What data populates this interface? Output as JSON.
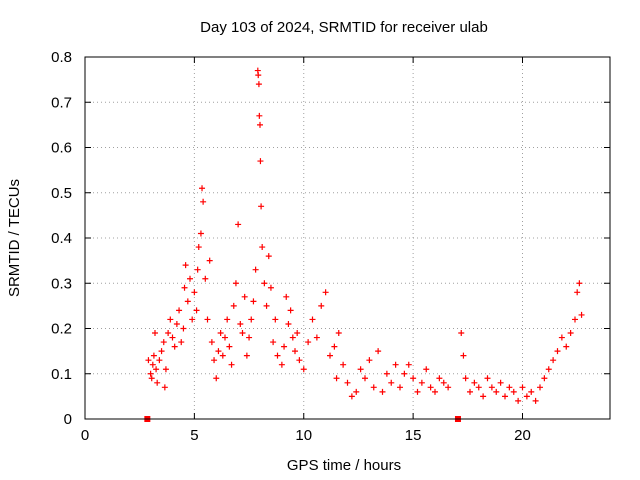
{
  "chart_data": {
    "type": "scatter",
    "title": "Day 103 of 2024, SRMTID for receiver ulab",
    "xlabel": "GPS time / hours",
    "ylabel": "SRMTID / TECUs",
    "xlim": [
      0,
      24
    ],
    "ylim": [
      0,
      0.8
    ],
    "xticks": [
      0,
      5,
      10,
      15,
      20
    ],
    "yticks": [
      0,
      0.1,
      0.2,
      0.3,
      0.4,
      0.5,
      0.6,
      0.7,
      0.8
    ],
    "xtick_labels": [
      "0",
      "5",
      "10",
      "15",
      "20"
    ],
    "ytick_labels": [
      "0",
      "0.1",
      "0.2",
      "0.3",
      "0.4",
      "0.5",
      "0.6",
      "0.7",
      "0.8"
    ],
    "grid": true,
    "series_color": "#ff0000",
    "marker": "plus",
    "markers_at_zero": [
      2.85,
      17.05
    ],
    "series": [
      {
        "name": "SRMTID",
        "points": [
          [
            2.9,
            0.13
          ],
          [
            3.0,
            0.1
          ],
          [
            3.05,
            0.09
          ],
          [
            3.1,
            0.12
          ],
          [
            3.15,
            0.14
          ],
          [
            3.2,
            0.19
          ],
          [
            3.25,
            0.11
          ],
          [
            3.3,
            0.08
          ],
          [
            3.4,
            0.13
          ],
          [
            3.5,
            0.15
          ],
          [
            3.6,
            0.17
          ],
          [
            3.65,
            0.07
          ],
          [
            3.7,
            0.11
          ],
          [
            3.8,
            0.19
          ],
          [
            3.9,
            0.22
          ],
          [
            4.0,
            0.18
          ],
          [
            4.1,
            0.16
          ],
          [
            4.2,
            0.21
          ],
          [
            4.3,
            0.24
          ],
          [
            4.4,
            0.17
          ],
          [
            4.5,
            0.2
          ],
          [
            4.55,
            0.29
          ],
          [
            4.6,
            0.34
          ],
          [
            4.7,
            0.26
          ],
          [
            4.8,
            0.31
          ],
          [
            4.9,
            0.22
          ],
          [
            5.0,
            0.28
          ],
          [
            5.1,
            0.24
          ],
          [
            5.15,
            0.33
          ],
          [
            5.2,
            0.38
          ],
          [
            5.3,
            0.41
          ],
          [
            5.35,
            0.51
          ],
          [
            5.4,
            0.48
          ],
          [
            5.5,
            0.31
          ],
          [
            5.6,
            0.22
          ],
          [
            5.7,
            0.35
          ],
          [
            5.8,
            0.17
          ],
          [
            5.9,
            0.13
          ],
          [
            6.0,
            0.09
          ],
          [
            6.1,
            0.15
          ],
          [
            6.2,
            0.19
          ],
          [
            6.3,
            0.14
          ],
          [
            6.4,
            0.18
          ],
          [
            6.5,
            0.22
          ],
          [
            6.6,
            0.16
          ],
          [
            6.7,
            0.12
          ],
          [
            6.8,
            0.25
          ],
          [
            6.9,
            0.3
          ],
          [
            7.0,
            0.43
          ],
          [
            7.1,
            0.21
          ],
          [
            7.2,
            0.19
          ],
          [
            7.3,
            0.27
          ],
          [
            7.4,
            0.14
          ],
          [
            7.5,
            0.18
          ],
          [
            7.6,
            0.22
          ],
          [
            7.7,
            0.26
          ],
          [
            7.8,
            0.33
          ],
          [
            7.9,
            0.77
          ],
          [
            7.92,
            0.76
          ],
          [
            7.95,
            0.74
          ],
          [
            7.97,
            0.67
          ],
          [
            8.0,
            0.65
          ],
          [
            8.02,
            0.57
          ],
          [
            8.05,
            0.47
          ],
          [
            8.1,
            0.38
          ],
          [
            8.2,
            0.3
          ],
          [
            8.3,
            0.25
          ],
          [
            8.4,
            0.36
          ],
          [
            8.5,
            0.29
          ],
          [
            8.6,
            0.17
          ],
          [
            8.7,
            0.22
          ],
          [
            8.8,
            0.14
          ],
          [
            9.0,
            0.12
          ],
          [
            9.1,
            0.16
          ],
          [
            9.2,
            0.27
          ],
          [
            9.3,
            0.21
          ],
          [
            9.4,
            0.24
          ],
          [
            9.5,
            0.18
          ],
          [
            9.6,
            0.15
          ],
          [
            9.7,
            0.19
          ],
          [
            9.8,
            0.13
          ],
          [
            10.0,
            0.11
          ],
          [
            10.2,
            0.17
          ],
          [
            10.4,
            0.22
          ],
          [
            10.6,
            0.18
          ],
          [
            10.8,
            0.25
          ],
          [
            11.0,
            0.28
          ],
          [
            11.2,
            0.14
          ],
          [
            11.4,
            0.16
          ],
          [
            11.5,
            0.09
          ],
          [
            11.6,
            0.19
          ],
          [
            11.8,
            0.12
          ],
          [
            12.0,
            0.08
          ],
          [
            12.2,
            0.05
          ],
          [
            12.4,
            0.06
          ],
          [
            12.6,
            0.11
          ],
          [
            12.8,
            0.09
          ],
          [
            13.0,
            0.13
          ],
          [
            13.2,
            0.07
          ],
          [
            13.4,
            0.15
          ],
          [
            13.6,
            0.06
          ],
          [
            13.8,
            0.1
          ],
          [
            14.0,
            0.08
          ],
          [
            14.2,
            0.12
          ],
          [
            14.4,
            0.07
          ],
          [
            14.6,
            0.1
          ],
          [
            14.8,
            0.12
          ],
          [
            15.0,
            0.09
          ],
          [
            15.2,
            0.06
          ],
          [
            15.4,
            0.08
          ],
          [
            15.6,
            0.11
          ],
          [
            15.8,
            0.07
          ],
          [
            16.0,
            0.06
          ],
          [
            16.2,
            0.09
          ],
          [
            16.4,
            0.08
          ],
          [
            16.6,
            0.07
          ],
          [
            17.2,
            0.19
          ],
          [
            17.3,
            0.14
          ],
          [
            17.4,
            0.09
          ],
          [
            17.6,
            0.06
          ],
          [
            17.8,
            0.08
          ],
          [
            18.0,
            0.07
          ],
          [
            18.2,
            0.05
          ],
          [
            18.4,
            0.09
          ],
          [
            18.6,
            0.07
          ],
          [
            18.8,
            0.06
          ],
          [
            19.0,
            0.08
          ],
          [
            19.2,
            0.05
          ],
          [
            19.4,
            0.07
          ],
          [
            19.6,
            0.06
          ],
          [
            19.8,
            0.04
          ],
          [
            20.0,
            0.07
          ],
          [
            20.2,
            0.05
          ],
          [
            20.4,
            0.06
          ],
          [
            20.6,
            0.04
          ],
          [
            20.8,
            0.07
          ],
          [
            21.0,
            0.09
          ],
          [
            21.2,
            0.11
          ],
          [
            21.4,
            0.13
          ],
          [
            21.6,
            0.15
          ],
          [
            21.8,
            0.18
          ],
          [
            22.0,
            0.16
          ],
          [
            22.2,
            0.19
          ],
          [
            22.4,
            0.22
          ],
          [
            22.5,
            0.28
          ],
          [
            22.6,
            0.3
          ],
          [
            22.7,
            0.23
          ]
        ]
      }
    ]
  }
}
